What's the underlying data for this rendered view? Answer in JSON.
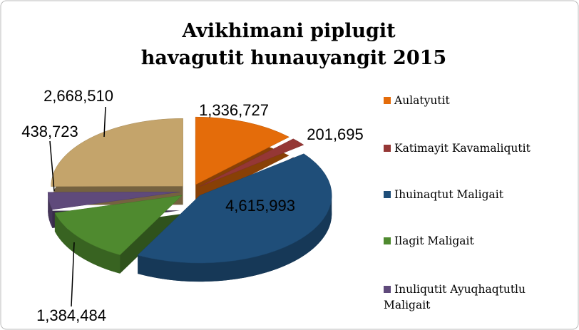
{
  "chart_data": {
    "type": "pie",
    "title": [
      "Avikhimani piplugit",
      "havagutit hunauyangit 2015"
    ],
    "categories": [
      "Aulatyutit",
      "Katimayit Kavamaliqutit",
      "Ihuinaqtut Maligait",
      "Ilagit Maligait",
      "Inuliqutit Ayuqhaqtutlu Maligait",
      null
    ],
    "values": [
      1336727,
      201695,
      4615993,
      1384484,
      438723,
      2668510
    ],
    "value_labels": [
      "1,336,727",
      "201,695",
      "4,615,993",
      "1,384,484",
      "438,723",
      "2,668,510"
    ],
    "colors": [
      "#e46c0a",
      "#953735",
      "#1f4e79",
      "#4f8a2f",
      "#5f4a7b",
      "#c4a46b"
    ],
    "legend": "right"
  }
}
